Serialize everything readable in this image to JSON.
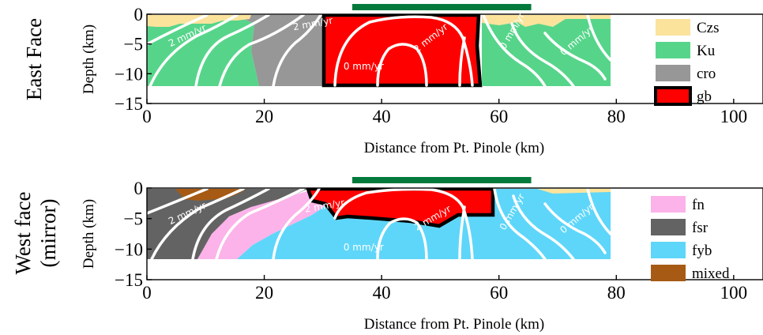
{
  "colors": {
    "Czs": "#fbe39c",
    "Ku": "#56d58a",
    "cro": "#979797",
    "gb": "#ff0000",
    "fn": "#fbb3e9",
    "fsr": "#636363",
    "fyb": "#5ed6f9",
    "mixed": "#a65a14",
    "bar": "#037a3c",
    "contour": "#ffffff"
  },
  "chart_data": [
    {
      "type": "area",
      "panel": "east",
      "side_label": "East Face",
      "xlabel": "Distance from Pt. Pinole (km)",
      "ylabel": "Depth (km)",
      "xlim": [
        0,
        105
      ],
      "ylim": [
        -15,
        0
      ],
      "xticks": [
        "0",
        "20",
        "40",
        "60",
        "80",
        "100"
      ],
      "yticks": [
        "0",
        "−5",
        "−10",
        "−15"
      ],
      "bar_extent_km": [
        35,
        65.5
      ],
      "legend": [
        {
          "key": "Czs",
          "label": "Czs",
          "outlined": false
        },
        {
          "key": "Ku",
          "label": "Ku",
          "outlined": false
        },
        {
          "key": "cro",
          "label": "cro",
          "outlined": false
        },
        {
          "key": "gb",
          "label": "gb",
          "outlined": true
        }
      ],
      "contour_labels": [
        {
          "text": "2 mm/yr",
          "x": 4,
          "y": -5.5,
          "angle": -25
        },
        {
          "text": "2 mm/yr",
          "x": 25,
          "y": -2.7,
          "angle": -10
        },
        {
          "text": "0 mm/yr",
          "x": 33.5,
          "y": -9.3,
          "angle": 0
        },
        {
          "text": "2 mm/yr",
          "x": 46,
          "y": -6.5,
          "angle": -38
        },
        {
          "text": "0 mm/yr",
          "x": 61,
          "y": -6,
          "angle": -60
        },
        {
          "text": "0 mm/yr",
          "x": 71,
          "y": -7,
          "angle": -40
        }
      ]
    },
    {
      "type": "area",
      "panel": "west",
      "side_label_lines": [
        "West face",
        "(mirror)"
      ],
      "xlabel": "Distance from Pt. Pinole (km)",
      "ylabel": "Depth (km)",
      "xlim": [
        0,
        105
      ],
      "ylim": [
        -15,
        0
      ],
      "xticks": [
        "0",
        "20",
        "40",
        "60",
        "80",
        "100"
      ],
      "yticks": [
        "0",
        "−5",
        "−10",
        "−15"
      ],
      "bar_extent_km": [
        35,
        65.5
      ],
      "legend": [
        {
          "key": "fn",
          "label": "fn",
          "outlined": false
        },
        {
          "key": "fsr",
          "label": "fsr",
          "outlined": false
        },
        {
          "key": "fyb",
          "label": "fyb",
          "outlined": false
        },
        {
          "key": "mixed",
          "label": "mixed",
          "outlined": false
        }
      ],
      "contour_labels": [
        {
          "text": "2 mm/yr",
          "x": 4,
          "y": -6,
          "angle": -25
        },
        {
          "text": "2 mm/yr",
          "x": 27,
          "y": -4,
          "angle": -10
        },
        {
          "text": "0 mm/yr",
          "x": 33.5,
          "y": -10.2,
          "angle": 0
        },
        {
          "text": "2 mm/yr",
          "x": 46,
          "y": -7,
          "angle": -30
        },
        {
          "text": "0 mm/yr",
          "x": 61,
          "y": -7,
          "angle": -60
        },
        {
          "text": "0 mm/yr",
          "x": 71,
          "y": -7.5,
          "angle": -40
        }
      ]
    }
  ]
}
